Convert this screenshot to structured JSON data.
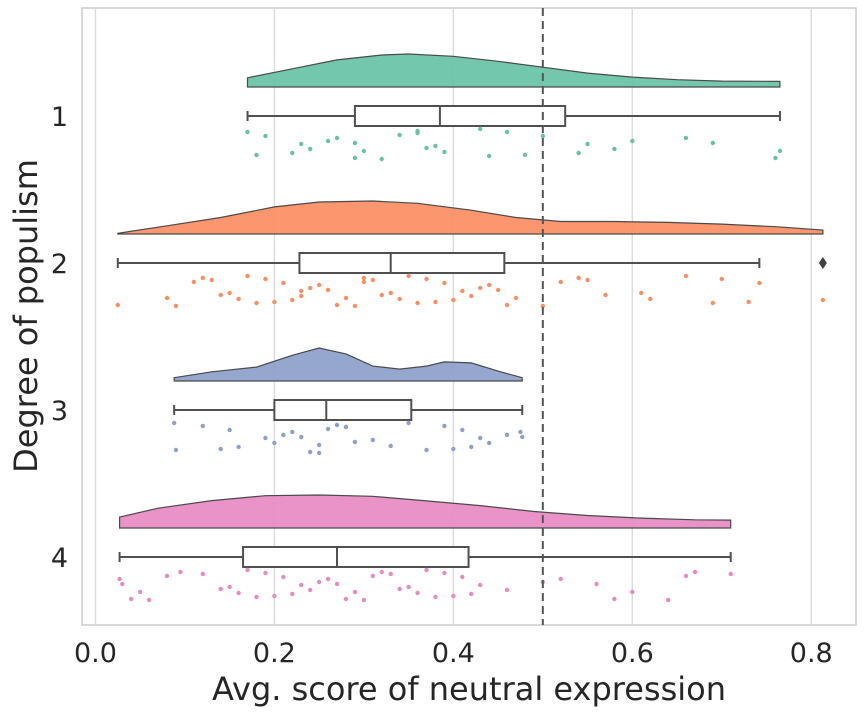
{
  "chart_data": {
    "type": "raincloud",
    "title": "",
    "xlabel": "Avg. score of neutral expression",
    "ylabel": "Degree of populism",
    "xlim": [
      -0.015,
      0.85
    ],
    "xticks": [
      "0.0",
      "0.2",
      "0.4",
      "0.6",
      "0.8"
    ],
    "xtick_values": [
      0.0,
      0.2,
      0.4,
      0.6,
      0.8
    ],
    "grid": "vertical",
    "reference_line": {
      "x": 0.5,
      "style": "dashed"
    },
    "groups": [
      {
        "label": "1",
        "color": "#66c2a5",
        "box": {
          "min": 0.17,
          "q1": 0.29,
          "median": 0.385,
          "q3": 0.525,
          "max": 0.765,
          "outliers": []
        },
        "density": [
          [
            0.17,
            0.28
          ],
          [
            0.22,
            0.55
          ],
          [
            0.27,
            0.82
          ],
          [
            0.32,
            0.97
          ],
          [
            0.35,
            1.0
          ],
          [
            0.4,
            0.93
          ],
          [
            0.45,
            0.78
          ],
          [
            0.5,
            0.6
          ],
          [
            0.55,
            0.42
          ],
          [
            0.6,
            0.3
          ],
          [
            0.65,
            0.22
          ],
          [
            0.7,
            0.18
          ],
          [
            0.765,
            0.17
          ]
        ],
        "points": [
          0.17,
          0.18,
          0.19,
          0.22,
          0.23,
          0.24,
          0.26,
          0.27,
          0.29,
          0.29,
          0.3,
          0.32,
          0.34,
          0.36,
          0.36,
          0.37,
          0.38,
          0.39,
          0.43,
          0.44,
          0.46,
          0.48,
          0.5,
          0.54,
          0.55,
          0.58,
          0.6,
          0.66,
          0.69,
          0.76,
          0.765
        ]
      },
      {
        "label": "2",
        "color": "#fc8d62",
        "box": {
          "min": 0.025,
          "q1": 0.228,
          "median": 0.33,
          "q3": 0.457,
          "max": 0.742,
          "outliers": [
            0.813
          ]
        },
        "density": [
          [
            0.025,
            0.02
          ],
          [
            0.08,
            0.25
          ],
          [
            0.14,
            0.5
          ],
          [
            0.2,
            0.82
          ],
          [
            0.25,
            0.97
          ],
          [
            0.31,
            1.0
          ],
          [
            0.36,
            0.93
          ],
          [
            0.42,
            0.72
          ],
          [
            0.47,
            0.5
          ],
          [
            0.52,
            0.38
          ],
          [
            0.58,
            0.38
          ],
          [
            0.64,
            0.35
          ],
          [
            0.7,
            0.3
          ],
          [
            0.76,
            0.22
          ],
          [
            0.813,
            0.12
          ]
        ],
        "points": [
          0.025,
          0.08,
          0.09,
          0.11,
          0.12,
          0.13,
          0.14,
          0.15,
          0.16,
          0.17,
          0.18,
          0.19,
          0.2,
          0.21,
          0.22,
          0.23,
          0.23,
          0.24,
          0.25,
          0.26,
          0.27,
          0.28,
          0.29,
          0.3,
          0.3,
          0.31,
          0.32,
          0.33,
          0.34,
          0.35,
          0.36,
          0.37,
          0.38,
          0.39,
          0.4,
          0.41,
          0.42,
          0.43,
          0.44,
          0.45,
          0.46,
          0.47,
          0.5,
          0.52,
          0.54,
          0.55,
          0.57,
          0.61,
          0.62,
          0.66,
          0.69,
          0.7,
          0.73,
          0.742,
          0.813
        ]
      },
      {
        "label": "3",
        "color": "#8da0cb",
        "box": {
          "min": 0.088,
          "q1": 0.2,
          "median": 0.258,
          "q3": 0.353,
          "max": 0.477,
          "outliers": []
        },
        "density": [
          [
            0.088,
            0.1
          ],
          [
            0.13,
            0.28
          ],
          [
            0.18,
            0.42
          ],
          [
            0.22,
            0.78
          ],
          [
            0.25,
            1.0
          ],
          [
            0.28,
            0.82
          ],
          [
            0.31,
            0.45
          ],
          [
            0.34,
            0.36
          ],
          [
            0.37,
            0.45
          ],
          [
            0.39,
            0.58
          ],
          [
            0.42,
            0.55
          ],
          [
            0.45,
            0.3
          ],
          [
            0.477,
            0.1
          ]
        ],
        "points": [
          0.088,
          0.09,
          0.12,
          0.14,
          0.15,
          0.16,
          0.19,
          0.2,
          0.21,
          0.22,
          0.23,
          0.24,
          0.25,
          0.25,
          0.26,
          0.27,
          0.28,
          0.29,
          0.31,
          0.33,
          0.35,
          0.37,
          0.39,
          0.4,
          0.41,
          0.42,
          0.43,
          0.44,
          0.46,
          0.475,
          0.477
        ]
      },
      {
        "label": "4",
        "color": "#e78ac3",
        "box": {
          "min": 0.027,
          "q1": 0.165,
          "median": 0.27,
          "q3": 0.417,
          "max": 0.71,
          "outliers": []
        },
        "density": [
          [
            0.027,
            0.33
          ],
          [
            0.07,
            0.6
          ],
          [
            0.13,
            0.83
          ],
          [
            0.19,
            0.98
          ],
          [
            0.25,
            1.0
          ],
          [
            0.31,
            0.96
          ],
          [
            0.37,
            0.82
          ],
          [
            0.43,
            0.68
          ],
          [
            0.49,
            0.5
          ],
          [
            0.55,
            0.38
          ],
          [
            0.61,
            0.3
          ],
          [
            0.67,
            0.25
          ],
          [
            0.71,
            0.24
          ]
        ],
        "points": [
          0.027,
          0.03,
          0.04,
          0.05,
          0.06,
          0.08,
          0.095,
          0.12,
          0.14,
          0.15,
          0.16,
          0.17,
          0.18,
          0.19,
          0.2,
          0.21,
          0.22,
          0.23,
          0.24,
          0.25,
          0.26,
          0.27,
          0.28,
          0.29,
          0.3,
          0.31,
          0.32,
          0.33,
          0.34,
          0.35,
          0.36,
          0.37,
          0.38,
          0.39,
          0.4,
          0.41,
          0.42,
          0.43,
          0.46,
          0.5,
          0.52,
          0.56,
          0.58,
          0.6,
          0.64,
          0.66,
          0.67,
          0.71
        ]
      }
    ]
  }
}
